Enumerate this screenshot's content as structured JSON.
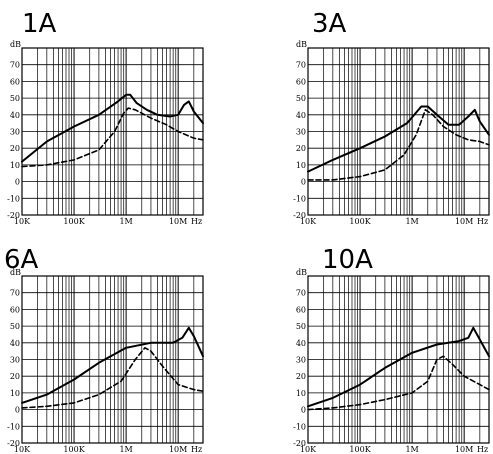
{
  "chart_data": [
    {
      "type": "line",
      "title": "1A",
      "ylabel": "dB",
      "xlabel": "Hz",
      "xscale": "log",
      "xlim": [
        10000,
        30000000
      ],
      "ylim": [
        -20,
        80
      ],
      "x_ticks": [
        "10K",
        "100K",
        "1M",
        "10M"
      ],
      "y_ticks": [
        "-20",
        "-10",
        "0",
        "10",
        "20",
        "30",
        "40",
        "50",
        "60",
        "70"
      ],
      "grid": true,
      "series": [
        {
          "style": "solid",
          "x": [
            10000,
            30000,
            100000,
            300000,
            700000,
            1000000,
            1200000,
            1600000,
            2500000,
            4000000,
            7000000,
            10000000,
            13000000,
            16000000,
            20000000,
            30000000
          ],
          "y": [
            12,
            24,
            33,
            40,
            48,
            52,
            52,
            47,
            43,
            40,
            39,
            40,
            46,
            48,
            42,
            35
          ]
        },
        {
          "style": "dashed",
          "x": [
            10000,
            30000,
            100000,
            300000,
            600000,
            900000,
            1100000,
            1500000,
            3000000,
            6000000,
            10000000,
            20000000,
            30000000
          ],
          "y": [
            9,
            10,
            13,
            19,
            30,
            41,
            44,
            43,
            38,
            34,
            30,
            26,
            25
          ]
        }
      ]
    },
    {
      "type": "line",
      "title": "3A",
      "ylabel": "dB",
      "xlabel": "Hz",
      "xscale": "log",
      "xlim": [
        10000,
        30000000
      ],
      "ylim": [
        -20,
        80
      ],
      "x_ticks": [
        "10K",
        "100K",
        "1M",
        "10M"
      ],
      "y_ticks": [
        "-20",
        "-10",
        "0",
        "10",
        "20",
        "30",
        "40",
        "50",
        "60",
        "70"
      ],
      "grid": true,
      "series": [
        {
          "style": "solid",
          "x": [
            10000,
            30000,
            100000,
            300000,
            800000,
            1500000,
            2000000,
            3000000,
            5000000,
            8000000,
            12000000,
            16000000,
            20000000,
            30000000
          ],
          "y": [
            6,
            13,
            20,
            27,
            35,
            45,
            45,
            40,
            34,
            34,
            39,
            43,
            36,
            28
          ]
        },
        {
          "style": "dashed",
          "x": [
            10000,
            30000,
            100000,
            300000,
            700000,
            1200000,
            1800000,
            2500000,
            4000000,
            7000000,
            12000000,
            20000000,
            30000000
          ],
          "y": [
            1,
            1,
            3,
            7,
            16,
            28,
            43,
            40,
            33,
            28,
            25,
            24,
            22
          ]
        }
      ]
    },
    {
      "type": "line",
      "title": "6A",
      "ylabel": "dB",
      "xlabel": "Hz",
      "xscale": "log",
      "xlim": [
        10000,
        30000000
      ],
      "ylim": [
        -20,
        80
      ],
      "x_ticks": [
        "10K",
        "100K",
        "1M",
        "10M"
      ],
      "y_ticks": [
        "-20",
        "-10",
        "0",
        "10",
        "20",
        "30",
        "40",
        "50",
        "60",
        "70"
      ],
      "grid": true,
      "series": [
        {
          "style": "solid",
          "x": [
            10000,
            30000,
            100000,
            300000,
            1000000,
            3000000,
            8000000,
            12000000,
            16000000,
            20000000,
            30000000
          ],
          "y": [
            4,
            9,
            18,
            28,
            37,
            40,
            40,
            43,
            49,
            44,
            32
          ]
        },
        {
          "style": "dashed",
          "x": [
            10000,
            30000,
            100000,
            300000,
            800000,
            1500000,
            2300000,
            3000000,
            5000000,
            10000000,
            20000000,
            30000000
          ],
          "y": [
            1,
            2,
            4,
            9,
            17,
            30,
            37,
            35,
            26,
            15,
            12,
            11
          ]
        }
      ]
    },
    {
      "type": "line",
      "title": "10A",
      "ylabel": "dB",
      "xlabel": "Hz",
      "xscale": "log",
      "xlim": [
        10000,
        30000000
      ],
      "ylim": [
        -20,
        80
      ],
      "x_ticks": [
        "10K",
        "100K",
        "1M",
        "10M"
      ],
      "y_ticks": [
        "-20",
        "-10",
        "0",
        "10",
        "20",
        "30",
        "40",
        "50",
        "60",
        "70"
      ],
      "grid": true,
      "series": [
        {
          "style": "solid",
          "x": [
            10000,
            30000,
            100000,
            300000,
            1000000,
            3000000,
            8000000,
            12000000,
            15000000,
            20000000,
            30000000
          ],
          "y": [
            2,
            7,
            15,
            25,
            34,
            39,
            41,
            43,
            49,
            42,
            32
          ]
        },
        {
          "style": "dashed",
          "x": [
            10000,
            30000,
            100000,
            300000,
            1000000,
            2000000,
            3000000,
            4000000,
            6000000,
            10000000,
            20000000,
            30000000
          ],
          "y": [
            0,
            1,
            3,
            6,
            10,
            17,
            30,
            32,
            27,
            20,
            15,
            12
          ]
        }
      ]
    }
  ]
}
